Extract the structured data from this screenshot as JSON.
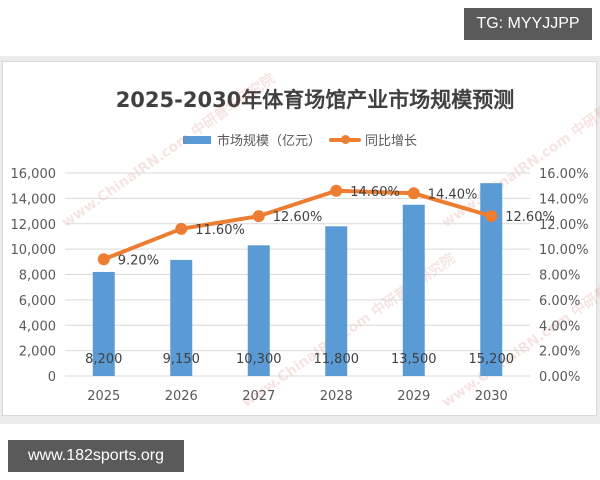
{
  "badges": {
    "top_right": "TG: MYYJJPP",
    "bottom_left": "www.182sports.org"
  },
  "watermark": {
    "url": "www.ChinaIRN.com",
    "name": "中研普华研究院"
  },
  "colors": {
    "bar": "#5b9bd5",
    "line": "#ed7d31",
    "text": "#595959",
    "grid": "#d9d9d9",
    "badge_bg": "#5a5a5a"
  },
  "chart_data": {
    "type": "bar+line",
    "title": "2025-2030年体育场馆产业市场规模预测",
    "categories": [
      "2025",
      "2026",
      "2027",
      "2028",
      "2029",
      "2030"
    ],
    "series": [
      {
        "name": "市场规模（亿元）",
        "type": "bar",
        "axis": "left",
        "values": [
          8200,
          9150,
          10300,
          11800,
          13500,
          15200
        ],
        "labels": [
          "8,200",
          "9,150",
          "10,300",
          "11,800",
          "13,500",
          "15,200"
        ]
      },
      {
        "name": "同比增长",
        "type": "line",
        "axis": "right",
        "values": [
          9.2,
          11.6,
          12.6,
          14.6,
          14.4,
          12.6
        ],
        "labels": [
          "9.20%",
          "11.60%",
          "12.60%",
          "14.60%",
          "14.40%",
          "12.60%"
        ]
      }
    ],
    "left_axis": {
      "ylim": [
        0,
        16000
      ],
      "ticks": [
        "0",
        "2,000",
        "4,000",
        "6,000",
        "8,000",
        "10,000",
        "12,000",
        "14,000",
        "16,000"
      ]
    },
    "right_axis": {
      "ylim": [
        0,
        16
      ],
      "ticks": [
        "0.00%",
        "2.00%",
        "4.00%",
        "6.00%",
        "8.00%",
        "10.00%",
        "12.00%",
        "14.00%",
        "16.00%"
      ]
    },
    "xlabel": "",
    "ylabel": "",
    "grid": true,
    "legend_position": "top"
  }
}
